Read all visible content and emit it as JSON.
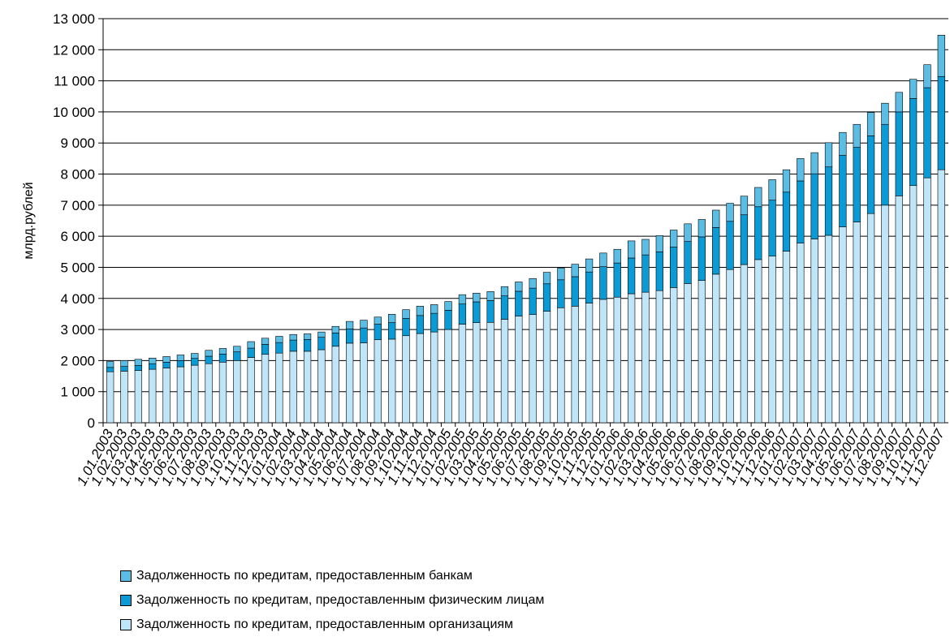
{
  "chart_data": {
    "type": "bar",
    "stacked": true,
    "title": "",
    "xlabel": "",
    "ylabel": "млрд.рублей",
    "ylim": [
      0,
      13000
    ],
    "yticks": [
      0,
      1000,
      2000,
      3000,
      4000,
      5000,
      6000,
      7000,
      8000,
      9000,
      10000,
      11000,
      12000,
      13000
    ],
    "ytick_labels": [
      "0",
      "1 000",
      "2 000",
      "3 000",
      "4 000",
      "5 000",
      "6 000",
      "7 000",
      "8 000",
      "9 000",
      "10 000",
      "11 000",
      "12 000",
      "13 000"
    ],
    "grid": true,
    "legend_position": "bottom",
    "categories": [
      "1.01.2003",
      "1.02.2003",
      "1.03.2003",
      "1.04.2003",
      "1.05.2003",
      "1.06.2003",
      "1.07.2003",
      "1.08.2003",
      "1.09.2003",
      "1.10.2003",
      "1.11.2003",
      "1.12.2003",
      "1.01.2004",
      "1.02.2004",
      "1.03.2004",
      "1.04.2004",
      "1.05.2004",
      "1.06.2004",
      "1.07.2004",
      "1.08.2004",
      "1.09.2004",
      "1.10.2004",
      "1.11.2004",
      "1.12.2004",
      "1.01.2005",
      "1.02.2005",
      "1.03.2005",
      "1.04.2005",
      "1.05.2005",
      "1.06.2005",
      "1.07.2005",
      "1.08.2005",
      "1.09.2005",
      "1.10.2005",
      "1.11.2005",
      "1.12.2005",
      "1.01.2006",
      "1.02.2006",
      "1.03.2006",
      "1.04.2006",
      "1.05.2006",
      "1.06.2006",
      "1.07.2006",
      "1.08.2006",
      "1.09.2006",
      "1.10.2006",
      "1.11.2006",
      "1.12.2006",
      "1.01.2007",
      "1.02.2007",
      "1.03.2007",
      "1.04.2007",
      "1.05.2007",
      "1.06.2007",
      "1.07.2007",
      "1.08.2007",
      "1.09.2007",
      "1.10.2007",
      "1.11.2007",
      "1.12.2007"
    ],
    "xtick_labels": [
      "1.01.2003",
      "1.02.2003",
      "1.03.2003",
      "1.04.2003",
      "1.05.2003",
      "1.06.2003",
      "1.07.2003",
      "1.08.2003",
      "1.09.2003",
      "1.10.2003",
      "1.11.2003",
      "1.12.2003",
      "1.01.2004",
      "1.02.2004",
      "1.03.2004",
      "1.04.2004",
      "1.05.2004",
      "1.06.2004",
      "1.07.2004",
      "1.08.2004",
      "1.09.2004",
      "1.10.2004",
      "1.11.2004",
      "1.12.2004",
      "1.01.2005",
      "1.02.2005",
      "1.03.2005",
      "1.04.2005",
      "1.05.2005",
      "1.06.2005",
      "1.07.2005",
      "1.08.2005",
      "1.09.2005",
      "1.10.2005",
      "1.11.2005",
      "1.12.2005",
      "1.01.2006",
      "1.02.2006",
      "1.03.2006",
      "1.04.2006",
      "1.05.2006",
      "1.06.2006",
      "1.07.2006",
      "1.08.2006",
      "1.09.2006",
      "1.10.2006",
      "1.11.2006",
      "1.12.2006",
      "1.01.2007",
      "1.02.2007",
      "1.03.2007",
      "1.04.2007",
      "1.05.2007",
      "1.06.2007",
      "1.07.2007",
      "1.08.2007",
      "1.09.2007",
      "1.10.2007",
      "1.11.2007",
      "1.12.2007"
    ],
    "series": [
      {
        "name": "Задолженность по кредитам, предоставленным организациям",
        "color": "#bfe6f8",
        "values": [
          1640,
          1660,
          1680,
          1720,
          1760,
          1800,
          1850,
          1900,
          1950,
          2000,
          2100,
          2200,
          2240,
          2300,
          2300,
          2350,
          2460,
          2560,
          2570,
          2670,
          2690,
          2800,
          2870,
          2920,
          3000,
          3170,
          3220,
          3230,
          3330,
          3430,
          3480,
          3590,
          3700,
          3750,
          3850,
          3970,
          4040,
          4150,
          4200,
          4250,
          4350,
          4480,
          4580,
          4780,
          4930,
          5090,
          5250,
          5360,
          5520,
          5780,
          5910,
          6030,
          6300,
          6460,
          6730,
          7000,
          7300,
          7630,
          7880,
          8140
        ]
      },
      {
        "name": "Задолженность по кредитам, предоставленным физическим лицам",
        "color": "#0a9ad6",
        "values": [
          140,
          150,
          160,
          180,
          190,
          200,
          220,
          240,
          260,
          280,
          300,
          320,
          340,
          360,
          380,
          400,
          430,
          460,
          480,
          500,
          530,
          560,
          580,
          600,
          620,
          650,
          670,
          700,
          750,
          800,
          850,
          880,
          900,
          950,
          1000,
          1050,
          1100,
          1150,
          1200,
          1250,
          1300,
          1350,
          1400,
          1500,
          1550,
          1600,
          1700,
          1800,
          1900,
          2000,
          2100,
          2200,
          2300,
          2400,
          2500,
          2600,
          2700,
          2800,
          2900,
          3000
        ]
      },
      {
        "name": "Задолженность по кредитам, предоставленным банкам",
        "color": "#5bbde4",
        "values": [
          190,
          190,
          200,
          180,
          180,
          180,
          160,
          190,
          180,
          180,
          210,
          200,
          200,
          180,
          180,
          170,
          210,
          240,
          250,
          230,
          270,
          280,
          300,
          280,
          280,
          300,
          280,
          290,
          300,
          300,
          310,
          370,
          380,
          400,
          420,
          440,
          440,
          550,
          500,
          520,
          550,
          570,
          560,
          560,
          580,
          600,
          620,
          660,
          720,
          720,
          680,
          780,
          740,
          740,
          750,
          680,
          630,
          620,
          740,
          1330
        ]
      }
    ]
  },
  "legend": {
    "items": [
      {
        "label": "Задолженность по кредитам, предоставленным банкам",
        "color": "#5bbde4"
      },
      {
        "label": "Задолженность по кредитам, предоставленным физическим лицам",
        "color": "#0a9ad6"
      },
      {
        "label": "Задолженность по кредитам, предоставленным организациям",
        "color": "#bfe6f8"
      }
    ]
  }
}
